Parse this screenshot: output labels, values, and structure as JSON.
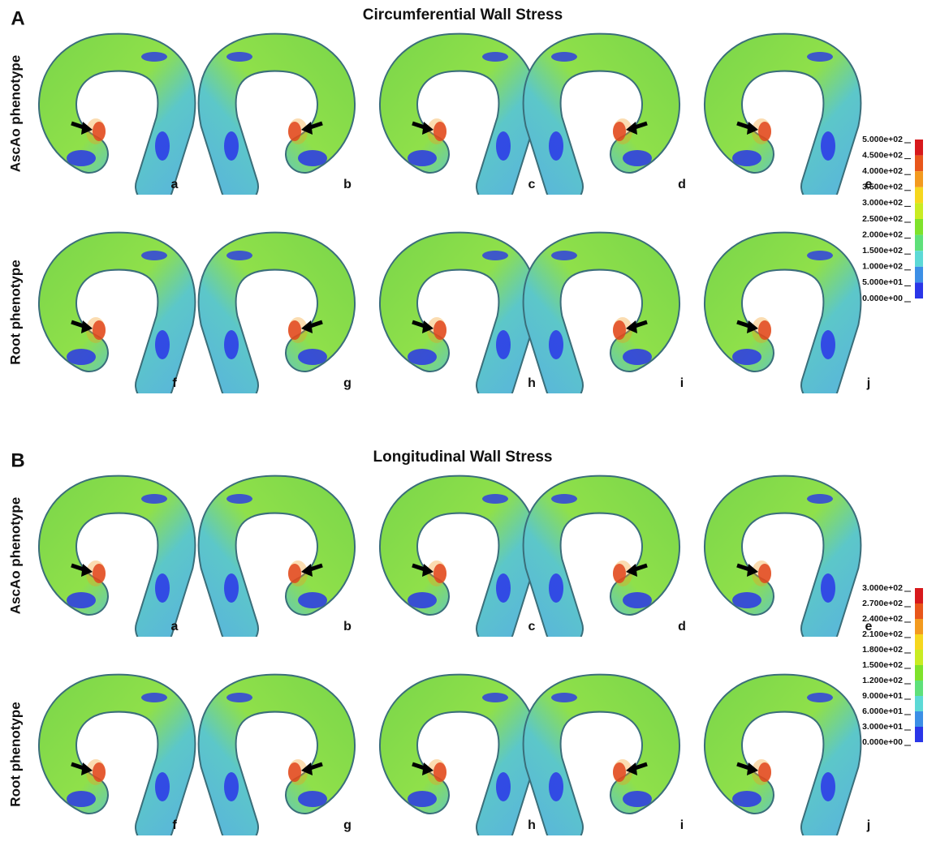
{
  "panels": [
    {
      "letter": "A",
      "title": "Circumferential Wall Stress",
      "rows": [
        {
          "label": "AscAo phenotype",
          "cases": [
            "a",
            "b",
            "c",
            "d",
            "e"
          ]
        },
        {
          "label": "Root phenotype",
          "cases": [
            "f",
            "g",
            "h",
            "i",
            "j"
          ]
        }
      ],
      "colorbar": {
        "ticks": [
          {
            "value": 500,
            "label": "5.000e+02"
          },
          {
            "value": 450,
            "label": "4.500e+02"
          },
          {
            "value": 400,
            "label": "4.000e+02"
          },
          {
            "value": 350,
            "label": "3.500e+02"
          },
          {
            "value": 300,
            "label": "3.000e+02"
          },
          {
            "value": 250,
            "label": "2.500e+02"
          },
          {
            "value": 200,
            "label": "2.000e+02"
          },
          {
            "value": 150,
            "label": "1.500e+02"
          },
          {
            "value": 100,
            "label": "1.000e+02"
          },
          {
            "value": 50,
            "label": "5.000e+01"
          },
          {
            "value": 0,
            "label": "0.000e+00"
          }
        ],
        "colors": [
          "#d7191c",
          "#e8561b",
          "#f39a1f",
          "#f6d71e",
          "#c9ec23",
          "#7fe22b",
          "#5fe07a",
          "#5cd9d6",
          "#3c8fe6",
          "#2a36e8"
        ]
      }
    },
    {
      "letter": "B",
      "title": "Longitudinal Wall Stress",
      "rows": [
        {
          "label": "AscAo phenotype",
          "cases": [
            "a",
            "b",
            "c",
            "d",
            "e"
          ]
        },
        {
          "label": "Root phenotype",
          "cases": [
            "f",
            "g",
            "h",
            "i",
            "j"
          ]
        }
      ],
      "colorbar": {
        "ticks": [
          {
            "value": 300,
            "label": "3.000e+02"
          },
          {
            "value": 270,
            "label": "2.700e+02"
          },
          {
            "value": 240,
            "label": "2.400e+02"
          },
          {
            "value": 210,
            "label": "2.100e+02"
          },
          {
            "value": 180,
            "label": "1.800e+02"
          },
          {
            "value": 150,
            "label": "1.500e+02"
          },
          {
            "value": 120,
            "label": "1.200e+02"
          },
          {
            "value": 90,
            "label": "9.000e+01"
          },
          {
            "value": 60,
            "label": "6.000e+01"
          },
          {
            "value": 30,
            "label": "3.000e+01"
          },
          {
            "value": 0,
            "label": "0.000e+00"
          }
        ],
        "colors": [
          "#d7191c",
          "#e8561b",
          "#f39a1f",
          "#f6d71e",
          "#c9ec23",
          "#7fe22b",
          "#5fe07a",
          "#5cd9d6",
          "#3c8fe6",
          "#2a36e8"
        ]
      }
    }
  ]
}
